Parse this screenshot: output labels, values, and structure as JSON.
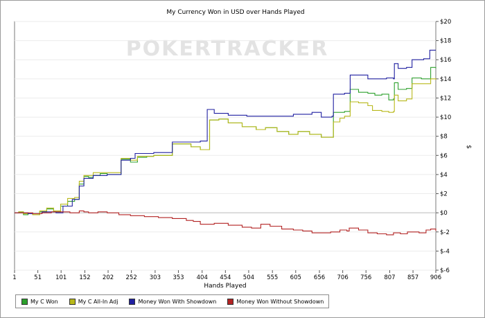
{
  "chart_data": {
    "type": "line",
    "title": "My Currency Won in USD over Hands Played",
    "xlabel": "Hands Played",
    "ylabel": "$",
    "watermark": "POKERTRACKER",
    "xlim": [
      1,
      906
    ],
    "ylim": [
      -6,
      20
    ],
    "x_ticks": [
      1,
      51,
      101,
      152,
      202,
      252,
      303,
      353,
      404,
      454,
      504,
      555,
      605,
      656,
      706,
      756,
      807,
      857,
      906
    ],
    "y_ticks": [
      20,
      18,
      16,
      14,
      12,
      10,
      8,
      6,
      4,
      2,
      0,
      -2,
      -4,
      -6
    ],
    "y_tick_labels": [
      "$20",
      "$18",
      "$16",
      "$14",
      "$12",
      "$10",
      "$8",
      "$6",
      "$4",
      "$2",
      "$0",
      "$-2",
      "$-4",
      "$-6"
    ],
    "grid": true,
    "legend_position": "bottom-left",
    "series": [
      {
        "name": "My C Won",
        "color": "#2ca02c",
        "points": [
          [
            1,
            0
          ],
          [
            10,
            0.1
          ],
          [
            20,
            -0.2
          ],
          [
            30,
            -0.1
          ],
          [
            40,
            -0.2
          ],
          [
            55,
            0.1
          ],
          [
            70,
            0.4
          ],
          [
            85,
            0.1
          ],
          [
            100,
            0.7
          ],
          [
            115,
            1.2
          ],
          [
            130,
            1.4
          ],
          [
            140,
            3
          ],
          [
            150,
            3.8
          ],
          [
            160,
            3.7
          ],
          [
            170,
            3.9
          ],
          [
            185,
            4.1
          ],
          [
            200,
            4
          ],
          [
            230,
            5.6
          ],
          [
            250,
            5.3
          ],
          [
            265,
            5.8
          ],
          [
            285,
            5.9
          ],
          [
            300,
            6
          ],
          [
            340,
            7.2
          ],
          [
            380,
            6.9
          ],
          [
            400,
            6.6
          ],
          [
            420,
            9.7
          ],
          [
            440,
            9.8
          ],
          [
            460,
            9.4
          ],
          [
            490,
            9
          ],
          [
            520,
            8.7
          ],
          [
            540,
            8.9
          ],
          [
            565,
            8.5
          ],
          [
            590,
            8.2
          ],
          [
            610,
            8.5
          ],
          [
            635,
            8.2
          ],
          [
            660,
            7.9
          ],
          [
            683,
            7.9
          ],
          [
            686,
            10.5
          ],
          [
            710,
            10.6
          ],
          [
            722,
            12.9
          ],
          [
            740,
            12.6
          ],
          [
            760,
            12.5
          ],
          [
            775,
            12.3
          ],
          [
            790,
            12.4
          ],
          [
            805,
            11.8
          ],
          [
            815,
            11.9
          ],
          [
            817,
            13.6
          ],
          [
            825,
            12.9
          ],
          [
            843,
            13
          ],
          [
            855,
            14.1
          ],
          [
            875,
            14
          ],
          [
            895,
            15.2
          ],
          [
            906,
            15.1
          ]
        ]
      },
      {
        "name": "My C All-In Adj",
        "color": "#b8b81a",
        "points": [
          [
            1,
            0
          ],
          [
            10,
            0.1
          ],
          [
            20,
            -0.1
          ],
          [
            40,
            -0.2
          ],
          [
            55,
            0.2
          ],
          [
            70,
            0.5
          ],
          [
            85,
            0.2
          ],
          [
            100,
            0.9
          ],
          [
            115,
            1.5
          ],
          [
            130,
            1.6
          ],
          [
            140,
            3.3
          ],
          [
            150,
            3.9
          ],
          [
            170,
            4.2
          ],
          [
            200,
            4.2
          ],
          [
            230,
            5.7
          ],
          [
            250,
            5.5
          ],
          [
            265,
            5.9
          ],
          [
            285,
            5.9
          ],
          [
            300,
            6
          ],
          [
            340,
            7.2
          ],
          [
            380,
            6.9
          ],
          [
            400,
            6.6
          ],
          [
            420,
            9.7
          ],
          [
            440,
            9.8
          ],
          [
            460,
            9.4
          ],
          [
            490,
            9
          ],
          [
            520,
            8.7
          ],
          [
            540,
            8.9
          ],
          [
            565,
            8.5
          ],
          [
            590,
            8.2
          ],
          [
            610,
            8.5
          ],
          [
            635,
            8.2
          ],
          [
            660,
            7.9
          ],
          [
            683,
            7.9
          ],
          [
            686,
            9.5
          ],
          [
            700,
            9.9
          ],
          [
            710,
            10.1
          ],
          [
            722,
            11.6
          ],
          [
            740,
            11.5
          ],
          [
            760,
            11.2
          ],
          [
            770,
            10.7
          ],
          [
            790,
            10.6
          ],
          [
            805,
            10.5
          ],
          [
            815,
            10.6
          ],
          [
            817,
            12.3
          ],
          [
            825,
            11.7
          ],
          [
            843,
            11.9
          ],
          [
            855,
            13.5
          ],
          [
            875,
            13.5
          ],
          [
            895,
            14
          ],
          [
            906,
            13.9
          ]
        ]
      },
      {
        "name": "Money Won With Showdown",
        "color": "#1f1fa0",
        "points": [
          [
            1,
            0
          ],
          [
            10,
            0
          ],
          [
            30,
            -0.1
          ],
          [
            60,
            0.1
          ],
          [
            90,
            0
          ],
          [
            105,
            0.7
          ],
          [
            125,
            1.4
          ],
          [
            140,
            2.8
          ],
          [
            150,
            3.6
          ],
          [
            170,
            3.9
          ],
          [
            200,
            4
          ],
          [
            230,
            5.5
          ],
          [
            250,
            5.7
          ],
          [
            260,
            6.2
          ],
          [
            300,
            6.3
          ],
          [
            340,
            7.4
          ],
          [
            380,
            7.4
          ],
          [
            400,
            7.5
          ],
          [
            415,
            10.8
          ],
          [
            430,
            10.4
          ],
          [
            460,
            10.2
          ],
          [
            500,
            10.1
          ],
          [
            560,
            10.1
          ],
          [
            600,
            10.3
          ],
          [
            640,
            10.5
          ],
          [
            660,
            10
          ],
          [
            683,
            10.1
          ],
          [
            686,
            12.4
          ],
          [
            710,
            12.5
          ],
          [
            722,
            14.4
          ],
          [
            760,
            14
          ],
          [
            780,
            14
          ],
          [
            800,
            14.1
          ],
          [
            815,
            14
          ],
          [
            817,
            15.6
          ],
          [
            825,
            15.1
          ],
          [
            843,
            15.2
          ],
          [
            855,
            16
          ],
          [
            880,
            16.1
          ],
          [
            893,
            17
          ],
          [
            906,
            17
          ]
        ]
      },
      {
        "name": "Money Won Without Showdown",
        "color": "#b22222",
        "points": [
          [
            1,
            0
          ],
          [
            20,
            0
          ],
          [
            40,
            -0.1
          ],
          [
            60,
            0
          ],
          [
            80,
            0.1
          ],
          [
            100,
            0.1
          ],
          [
            120,
            0
          ],
          [
            140,
            0.2
          ],
          [
            150,
            0.1
          ],
          [
            160,
            0
          ],
          [
            180,
            0.1
          ],
          [
            200,
            0
          ],
          [
            225,
            -0.2
          ],
          [
            250,
            -0.3
          ],
          [
            280,
            -0.4
          ],
          [
            310,
            -0.5
          ],
          [
            340,
            -0.6
          ],
          [
            370,
            -0.8
          ],
          [
            385,
            -0.9
          ],
          [
            400,
            -1.2
          ],
          [
            430,
            -1.1
          ],
          [
            460,
            -1.3
          ],
          [
            490,
            -1.5
          ],
          [
            510,
            -1.6
          ],
          [
            530,
            -1.2
          ],
          [
            550,
            -1.4
          ],
          [
            575,
            -1.7
          ],
          [
            600,
            -1.8
          ],
          [
            620,
            -1.9
          ],
          [
            640,
            -2.1
          ],
          [
            660,
            -2.1
          ],
          [
            680,
            -2
          ],
          [
            700,
            -1.8
          ],
          [
            715,
            -1.9
          ],
          [
            720,
            -1.6
          ],
          [
            740,
            -1.8
          ],
          [
            760,
            -2.1
          ],
          [
            780,
            -2.2
          ],
          [
            800,
            -2.3
          ],
          [
            815,
            -2.1
          ],
          [
            830,
            -2.2
          ],
          [
            845,
            -2
          ],
          [
            870,
            -2.1
          ],
          [
            885,
            -1.8
          ],
          [
            895,
            -1.7
          ],
          [
            906,
            -1.9
          ]
        ]
      }
    ]
  }
}
